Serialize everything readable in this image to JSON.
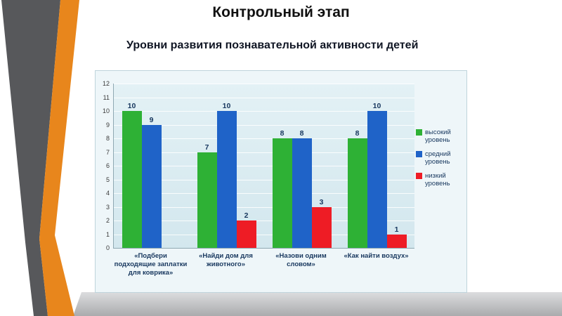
{
  "slide": {
    "title": "Контрольный этап",
    "subtitle": "Уровни развития познавательной активности детей"
  },
  "theme": {
    "stripe_gray": "#57585b",
    "stripe_orange": "#e8861c"
  },
  "chart_data": {
    "type": "bar",
    "title": "",
    "xlabel": "",
    "ylabel": "",
    "categories": [
      "«Подбери подходящие заплатки для коврика»",
      "«Найди дом для животного»",
      "«Назови одним словом»",
      "«Как найти воздух»"
    ],
    "series": [
      {
        "name": "высокий уровень",
        "color": "#2eb135",
        "values": [
          10,
          7,
          8,
          8
        ]
      },
      {
        "name": "средний уровень",
        "color": "#1f63c8",
        "values": [
          9,
          10,
          8,
          10
        ]
      },
      {
        "name": "низкий уровень",
        "color": "#ee1c25",
        "values": [
          0,
          2,
          3,
          1
        ]
      }
    ],
    "ylim": [
      0,
      12
    ],
    "yticks": [
      0,
      1,
      2,
      3,
      4,
      5,
      6,
      7,
      8,
      9,
      10,
      11,
      12
    ],
    "grid": true,
    "legend_position": "right"
  }
}
